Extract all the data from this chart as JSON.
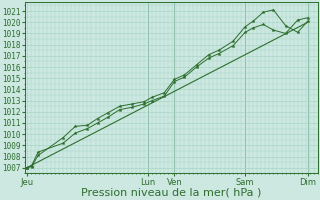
{
  "bg_color": "#cce8e0",
  "grid_color": "#a8d4c8",
  "line_color": "#2d6e2d",
  "spine_color": "#2d6e2d",
  "ylabel_values": [
    1007,
    1008,
    1009,
    1010,
    1011,
    1012,
    1013,
    1014,
    1015,
    1016,
    1017,
    1018,
    1019,
    1020,
    1021
  ],
  "ylim": [
    1006.5,
    1021.8
  ],
  "xlabel": "Pression niveau de la mer( hPa )",
  "xtick_labels": [
    "Jeu",
    "Lun",
    "Ven",
    "Sam",
    "Dim"
  ],
  "xtick_positions": [
    0.0,
    3.0,
    3.65,
    5.4,
    6.95
  ],
  "xlim": [
    -0.05,
    7.2
  ],
  "series1_x": [
    0.0,
    0.12,
    0.28,
    0.9,
    1.2,
    1.5,
    1.75,
    2.0,
    2.3,
    2.6,
    2.9,
    3.1,
    3.4,
    3.65,
    3.9,
    4.2,
    4.5,
    4.75,
    5.1,
    5.4,
    5.6,
    5.85,
    6.1,
    6.4,
    6.7,
    6.95
  ],
  "series1_y": [
    1007.0,
    1007.2,
    1008.4,
    1009.2,
    1010.1,
    1010.5,
    1011.0,
    1011.5,
    1012.2,
    1012.4,
    1012.7,
    1013.0,
    1013.4,
    1014.7,
    1015.1,
    1016.0,
    1016.8,
    1017.2,
    1017.9,
    1019.1,
    1019.5,
    1019.8,
    1019.3,
    1019.0,
    1020.2,
    1020.4
  ],
  "series2_x": [
    0.0,
    0.12,
    0.28,
    0.9,
    1.2,
    1.5,
    1.75,
    2.0,
    2.3,
    2.6,
    2.9,
    3.1,
    3.4,
    3.65,
    3.9,
    4.2,
    4.5,
    4.75,
    5.1,
    5.4,
    5.6,
    5.85,
    6.1,
    6.4,
    6.7,
    6.95
  ],
  "series2_y": [
    1007.0,
    1007.1,
    1008.1,
    1009.7,
    1010.7,
    1010.8,
    1011.4,
    1011.9,
    1012.5,
    1012.7,
    1012.9,
    1013.3,
    1013.7,
    1014.9,
    1015.3,
    1016.2,
    1017.1,
    1017.5,
    1018.3,
    1019.6,
    1020.1,
    1020.9,
    1021.1,
    1019.7,
    1019.1,
    1020.1
  ],
  "series3_x": [
    0.0,
    6.95
  ],
  "series3_y": [
    1007.0,
    1020.0
  ],
  "vline_positions": [
    3.0,
    3.65,
    5.4,
    6.95
  ],
  "tick_fontsize": 5.5,
  "xlabel_fontsize": 8.0
}
